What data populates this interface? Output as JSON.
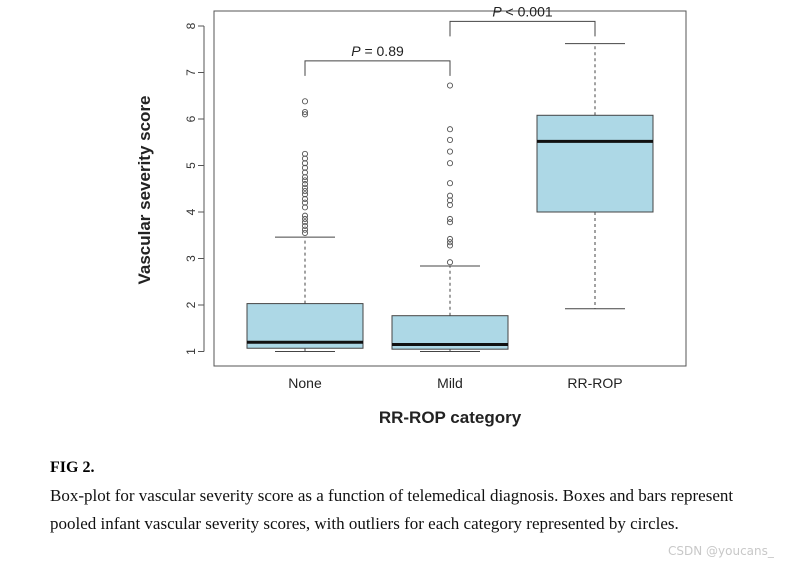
{
  "chart_data": {
    "type": "box",
    "xlabel": "RR-ROP category",
    "ylabel": "Vascular severity score",
    "ylim": [
      0.8,
      8.3
    ],
    "yticks": [
      1,
      2,
      3,
      4,
      5,
      6,
      7,
      8
    ],
    "categories": [
      "None",
      "Mild",
      "RR-ROP"
    ],
    "box_color": "#add8e6",
    "boxes": [
      {
        "category": "None",
        "whisker_low": 1.0,
        "q1": 1.07,
        "median": 1.2,
        "q3": 2.03,
        "whisker_high": 3.46,
        "outliers": [
          3.55,
          3.62,
          3.7,
          3.78,
          3.85,
          3.92,
          4.1,
          4.2,
          4.28,
          4.38,
          4.45,
          4.52,
          4.6,
          4.68,
          4.75,
          4.85,
          4.95,
          5.05,
          5.15,
          5.25,
          6.1,
          6.15,
          6.38
        ]
      },
      {
        "category": "Mild",
        "whisker_low": 1.0,
        "q1": 1.05,
        "median": 1.15,
        "q3": 1.77,
        "whisker_high": 2.84,
        "outliers": [
          2.92,
          3.28,
          3.35,
          3.42,
          3.78,
          3.85,
          4.15,
          4.25,
          4.35,
          4.62,
          5.05,
          5.3,
          5.55,
          5.78,
          6.72
        ]
      },
      {
        "category": "RR-ROP",
        "whisker_low": 1.92,
        "q1": 4.0,
        "median": 5.52,
        "q3": 6.08,
        "whisker_high": 7.62,
        "outliers": []
      }
    ],
    "annotations": [
      {
        "text": "P = 0.89",
        "from": "None",
        "to": "Mild",
        "y": 7.25
      },
      {
        "text": "P < 0.001",
        "from": "Mild",
        "to": "RR-ROP",
        "y": 8.1
      }
    ]
  },
  "figure": {
    "label": "FIG 2.",
    "caption": "Box-plot for vascular severity score as a function of telemedical diagnosis. Boxes and bars represent pooled infant vascular severity scores, with outliers for each category represented by circles."
  },
  "watermark": "CSDN @youcans_"
}
